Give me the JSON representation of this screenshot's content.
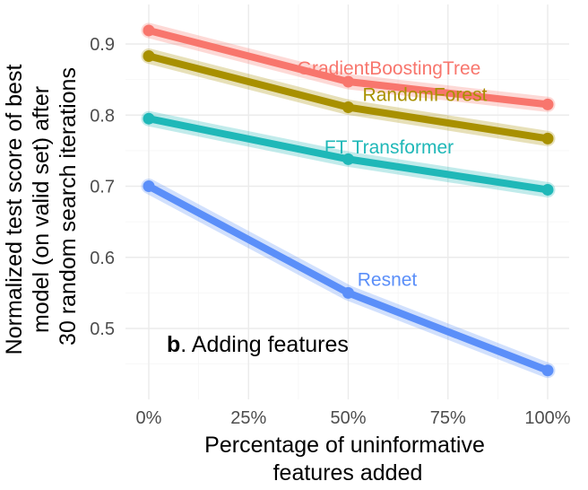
{
  "chart_data": {
    "type": "line",
    "x_labels": [
      "0%",
      "25%",
      "50%",
      "75%",
      "100%"
    ],
    "x": [
      0,
      50,
      100
    ],
    "xlim": [
      0,
      100
    ],
    "ylim": [
      0.4,
      0.95
    ],
    "y_ticks": [
      0.5,
      0.6,
      0.7,
      0.8,
      0.9
    ],
    "y_tick_labels": [
      "0.5",
      "0.6",
      "0.7",
      "0.8",
      "0.9"
    ],
    "xlabel_lines": [
      "Percentage of uninformative",
      "features added"
    ],
    "ylabel_lines": [
      "Normalized test score of best",
      "model (on valid set) after",
      "30 random search iterations"
    ],
    "annotation_bold": "b",
    "annotation_text": ". Adding features",
    "grid": true,
    "legend": "direct labels on lines",
    "series": [
      {
        "name": "GradientBoostingTree",
        "color": "#f8766d",
        "values": [
          0.919,
          0.847,
          0.815
        ]
      },
      {
        "name": "RandomForest",
        "color": "#a89000",
        "values": [
          0.883,
          0.811,
          0.767
        ]
      },
      {
        "name": "FT Transformer",
        "color": "#1fb8b8",
        "values": [
          0.795,
          0.738,
          0.695
        ]
      },
      {
        "name": "Resnet",
        "color": "#5b8ff9",
        "values": [
          0.7,
          0.55,
          0.441
        ]
      }
    ]
  }
}
